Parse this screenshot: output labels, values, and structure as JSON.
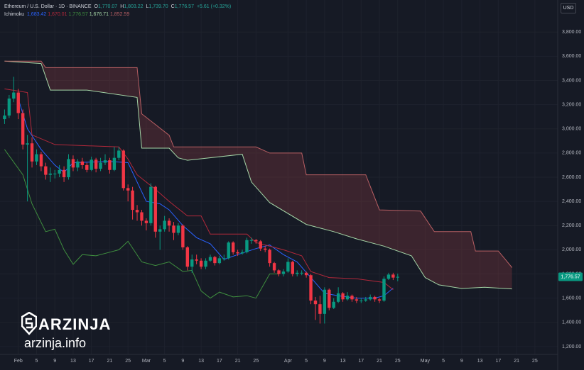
{
  "chart_data": {
    "type": "candlestick",
    "title": "Ethereum / U.S. Dollar · 1D · BINANCE",
    "ohlc_legend": [
      {
        "key": "O",
        "text": "1,770.07"
      },
      {
        "key": "H",
        "text": "1,803.22"
      },
      {
        "key": "L",
        "text": "1,739.70"
      },
      {
        "key": "C",
        "text": "1,776.57"
      },
      {
        "key": "",
        "text": "+5.61 (+0.32%)"
      }
    ],
    "currency": "USD",
    "last_price_label": "1,776.57",
    "up_color": "#089981",
    "down_color": "#f23645",
    "x": [
      -3,
      -2,
      -1,
      0,
      1,
      2,
      3,
      4,
      5,
      6,
      7,
      8,
      9,
      10,
      11,
      12,
      13,
      14,
      15,
      16,
      17,
      18,
      19,
      20,
      21,
      22,
      23,
      24,
      25,
      26,
      27,
      28,
      29,
      30,
      31,
      32,
      33,
      34,
      35,
      36,
      37,
      38,
      39,
      40,
      41,
      42,
      43,
      44,
      45,
      46,
      47,
      48,
      49,
      50,
      51,
      52,
      53,
      54,
      55,
      56,
      57,
      58,
      59,
      60,
      61,
      62,
      63,
      64,
      65,
      66,
      67,
      68,
      69,
      70,
      71,
      72,
      73,
      74,
      75,
      76,
      77,
      78,
      79,
      80,
      81,
      82,
      83
    ],
    "open": [
      3080,
      3110,
      3250,
      3300,
      3130,
      2870,
      2880,
      2730,
      2790,
      2690,
      2620,
      2630,
      2630,
      2660,
      2600,
      2750,
      2680,
      2730,
      2700,
      2660,
      2745,
      2670,
      2720,
      2740,
      2660,
      2760,
      2820,
      2510,
      2490,
      2330,
      2310,
      2240,
      2220,
      2520,
      2150,
      2170,
      2240,
      2200,
      2140,
      2200,
      2020,
      1860,
      1920,
      1910,
      1860,
      1910,
      1940,
      1890,
      1930,
      1930,
      2060,
      1980,
      1970,
      1980,
      2080,
      2080,
      2070,
      2010,
      2000,
      1890,
      1830,
      1800,
      1820,
      1900,
      1800,
      1810,
      1810,
      1790,
      1580,
      1550,
      1470,
      1670,
      1520,
      1570,
      1640,
      1590,
      1620,
      1590,
      1580,
      1580,
      1590,
      1610,
      1590,
      1580,
      1760,
      1795,
      1770.07
    ],
    "high": [
      3160,
      3280,
      3430,
      3330,
      3160,
      2950,
      2930,
      2830,
      2810,
      2720,
      2680,
      2660,
      2700,
      2690,
      2790,
      2780,
      2750,
      2760,
      2720,
      2770,
      2760,
      2760,
      2790,
      2760,
      2850,
      2850,
      2830,
      2540,
      2520,
      2370,
      2330,
      2260,
      2550,
      2530,
      2200,
      2280,
      2260,
      2230,
      2220,
      2210,
      2030,
      1960,
      1960,
      1930,
      1930,
      1960,
      1950,
      1950,
      1960,
      2070,
      2070,
      2000,
      2000,
      2100,
      2100,
      2090,
      2080,
      2030,
      2010,
      1900,
      1840,
      1840,
      1930,
      1910,
      1830,
      1830,
      1820,
      1800,
      1610,
      1620,
      1690,
      1680,
      1600,
      1690,
      1650,
      1650,
      1630,
      1610,
      1600,
      1610,
      1630,
      1620,
      1600,
      1780,
      1810,
      1810,
      1803.22
    ],
    "low": [
      3040,
      3090,
      3220,
      3080,
      2830,
      2400,
      2680,
      2700,
      2650,
      2580,
      2560,
      2590,
      2600,
      2560,
      2580,
      2650,
      2650,
      2670,
      2640,
      2650,
      2640,
      2650,
      2700,
      2630,
      2650,
      2740,
      2490,
      2400,
      2250,
      2240,
      2200,
      2160,
      2200,
      2100,
      2000,
      2150,
      2150,
      2080,
      2120,
      2000,
      1830,
      1810,
      1880,
      1840,
      1840,
      1900,
      1870,
      1880,
      1910,
      1920,
      1960,
      1950,
      1960,
      1970,
      2050,
      2050,
      1990,
      1980,
      1860,
      1810,
      1780,
      1780,
      1810,
      1780,
      1780,
      1790,
      1770,
      1550,
      1420,
      1390,
      1390,
      1500,
      1510,
      1560,
      1570,
      1580,
      1570,
      1560,
      1560,
      1570,
      1580,
      1570,
      1560,
      1570,
      1750,
      1750,
      1739.7
    ],
    "close": [
      3110,
      3250,
      3300,
      3130,
      2870,
      2880,
      2730,
      2790,
      2690,
      2620,
      2630,
      2630,
      2660,
      2600,
      2750,
      2680,
      2730,
      2700,
      2660,
      2745,
      2670,
      2720,
      2740,
      2660,
      2760,
      2820,
      2510,
      2490,
      2330,
      2310,
      2240,
      2220,
      2520,
      2150,
      2170,
      2240,
      2200,
      2140,
      2200,
      2020,
      1860,
      1920,
      1910,
      1860,
      1910,
      1940,
      1890,
      1930,
      1930,
      2060,
      1980,
      1970,
      1980,
      2080,
      2080,
      2070,
      2010,
      2000,
      1890,
      1830,
      1800,
      1820,
      1900,
      1800,
      1810,
      1810,
      1790,
      1580,
      1550,
      1470,
      1670,
      1520,
      1570,
      1640,
      1590,
      1620,
      1590,
      1580,
      1580,
      1590,
      1610,
      1590,
      1580,
      1760,
      1795,
      1770,
      1776.57
    ],
    "indicator": {
      "name": "Ichimoku",
      "lines": [
        {
          "color": "#2962ff",
          "last_label": "1,683.42",
          "x": [
            0,
            2,
            5,
            8,
            10,
            12,
            20,
            24,
            26,
            28,
            31,
            33,
            36,
            39,
            42,
            45,
            48,
            52,
            55,
            58,
            61,
            64,
            67,
            70,
            74,
            78,
            80,
            82
          ],
          "values": [
            3250,
            3000,
            2830,
            2700,
            2640,
            2720,
            2730,
            2720,
            2560,
            2400,
            2380,
            2330,
            2200,
            2100,
            2050,
            1920,
            1960,
            2010,
            2040,
            1960,
            1900,
            1770,
            1640,
            1620,
            1600,
            1600,
            1620,
            1683.42
          ]
        },
        {
          "color": "#b2283a",
          "last_label": "1,670.01",
          "x": [
            -3,
            2,
            3,
            8,
            22,
            24,
            26,
            30,
            33,
            37,
            40,
            42,
            50,
            52,
            58,
            62,
            64,
            68,
            74,
            80,
            82
          ],
          "values": [
            3330,
            3300,
            2950,
            2870,
            2850,
            2750,
            2620,
            2500,
            2400,
            2280,
            2280,
            2130,
            2130,
            2060,
            2000,
            1950,
            1820,
            1770,
            1760,
            1730,
            1670.01
          ]
        },
        {
          "color": "#3f8f3f",
          "last_label": "1,776.57",
          "x": [
            -3,
            1,
            3,
            6,
            8,
            10,
            12,
            14,
            17,
            20,
            22,
            24,
            27,
            30,
            33,
            36,
            38,
            40,
            42,
            44,
            47,
            50,
            52,
            55,
            57
          ],
          "values": [
            2830,
            2620,
            2380,
            2150,
            2170,
            2000,
            1880,
            1960,
            1950,
            1980,
            2000,
            2070,
            1900,
            1870,
            1900,
            1820,
            1830,
            1660,
            1600,
            1650,
            1610,
            1620,
            1600,
            1800,
            1800
          ]
        },
        {
          "color": "#a5d6a7",
          "last_label": "1,676.71",
          "cloud": "a",
          "x": [
            -3,
            5,
            7,
            15,
            26,
            27,
            33,
            35,
            37,
            49,
            51,
            55,
            63,
            69,
            74,
            80,
            86,
            89,
            92,
            97,
            102,
            108
          ],
          "values": [
            3560,
            3540,
            3320,
            3320,
            3260,
            2840,
            2840,
            2760,
            2740,
            2790,
            2560,
            2390,
            2210,
            2150,
            2090,
            2030,
            1950,
            1770,
            1710,
            1680,
            1690,
            1676.71
          ]
        },
        {
          "color": "#b85f63",
          "last_label": "1,852.59",
          "cloud": "b",
          "x": [
            -3,
            5,
            6,
            26,
            27,
            33,
            34,
            52,
            55,
            62,
            63,
            76,
            79,
            88,
            91,
            99,
            100,
            105,
            108
          ],
          "values": [
            3560,
            3560,
            3506,
            3506,
            3124,
            2947,
            2850,
            2850,
            2800,
            2800,
            2620,
            2620,
            2330,
            2320,
            2150,
            2150,
            1990,
            1990,
            1852.59
          ]
        }
      ]
    },
    "xlim": [
      -4,
      118
    ],
    "ylim": [
      1135,
      4065
    ],
    "xticks": [
      {
        "value": 0,
        "label": "Feb"
      },
      {
        "value": 4,
        "label": "5"
      },
      {
        "value": 8,
        "label": "9"
      },
      {
        "value": 12,
        "label": "13"
      },
      {
        "value": 16,
        "label": "17"
      },
      {
        "value": 20,
        "label": "21"
      },
      {
        "value": 24,
        "label": "25"
      },
      {
        "value": 28,
        "label": "Mar"
      },
      {
        "value": 32,
        "label": "5"
      },
      {
        "value": 36,
        "label": "9"
      },
      {
        "value": 40,
        "label": "13"
      },
      {
        "value": 44,
        "label": "17"
      },
      {
        "value": 48,
        "label": "21"
      },
      {
        "value": 52,
        "label": "25"
      },
      {
        "value": 59,
        "label": "Apr"
      },
      {
        "value": 63,
        "label": "5"
      },
      {
        "value": 67,
        "label": "9"
      },
      {
        "value": 71,
        "label": "13"
      },
      {
        "value": 75,
        "label": "17"
      },
      {
        "value": 79,
        "label": "21"
      },
      {
        "value": 83,
        "label": "25"
      },
      {
        "value": 89,
        "label": "May"
      },
      {
        "value": 93,
        "label": "5"
      },
      {
        "value": 97,
        "label": "9"
      },
      {
        "value": 101,
        "label": "13"
      },
      {
        "value": 105,
        "label": "17"
      },
      {
        "value": 109,
        "label": "21"
      },
      {
        "value": 113,
        "label": "25"
      }
    ],
    "yticks": [
      {
        "value": 1200,
        "label": "1,200.00"
      },
      {
        "value": 1400,
        "label": "1,400.00"
      },
      {
        "value": 1600,
        "label": "1,600.00"
      },
      {
        "value": 1800,
        "label": "1,800.00"
      },
      {
        "value": 2000,
        "label": "2,000.00"
      },
      {
        "value": 2200,
        "label": "2,200.00"
      },
      {
        "value": 2400,
        "label": "2,400.00"
      },
      {
        "value": 2600,
        "label": "2,600.00"
      },
      {
        "value": 2800,
        "label": "2,800.00"
      },
      {
        "value": 3000,
        "label": "3,000.00"
      },
      {
        "value": 3200,
        "label": "3,200.00"
      },
      {
        "value": 3400,
        "label": "3,400.00"
      },
      {
        "value": 3600,
        "label": "3,600.00"
      },
      {
        "value": 3800,
        "label": "3,800.00"
      }
    ],
    "grid": true
  },
  "watermark": {
    "brand": "ARZINJA",
    "site": "arzinja.info"
  }
}
